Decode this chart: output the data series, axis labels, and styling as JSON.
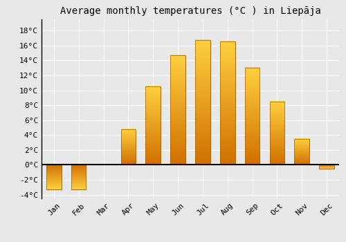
{
  "title": "Average monthly temperatures (°C ) in Liepāja",
  "months": [
    "Jan",
    "Feb",
    "Mar",
    "Apr",
    "May",
    "Jun",
    "Jul",
    "Aug",
    "Sep",
    "Oct",
    "Nov",
    "Dec"
  ],
  "temperatures": [
    -3.3,
    -3.3,
    0.0,
    4.8,
    10.5,
    14.7,
    16.7,
    16.5,
    13.0,
    8.5,
    3.5,
    -0.5
  ],
  "bar_color_top": "#FFB800",
  "bar_color_bottom": "#E08000",
  "bar_edge_color": "#A06000",
  "bar_linewidth": 0.5,
  "ylim": [
    -4.5,
    19.5
  ],
  "yticks": [
    -4,
    -2,
    0,
    2,
    4,
    6,
    8,
    10,
    12,
    14,
    16,
    18
  ],
  "ytick_labels": [
    "-4°C",
    "-2°C",
    "0°C",
    "2°C",
    "4°C",
    "6°C",
    "8°C",
    "10°C",
    "12°C",
    "14°C",
    "16°C",
    "18°C"
  ],
  "background_color": "#e8e8e8",
  "plot_bg_color": "#e8e8e8",
  "grid_color": "#ffffff",
  "title_fontsize": 10,
  "tick_fontsize": 8,
  "font_family": "monospace",
  "bar_width": 0.6
}
